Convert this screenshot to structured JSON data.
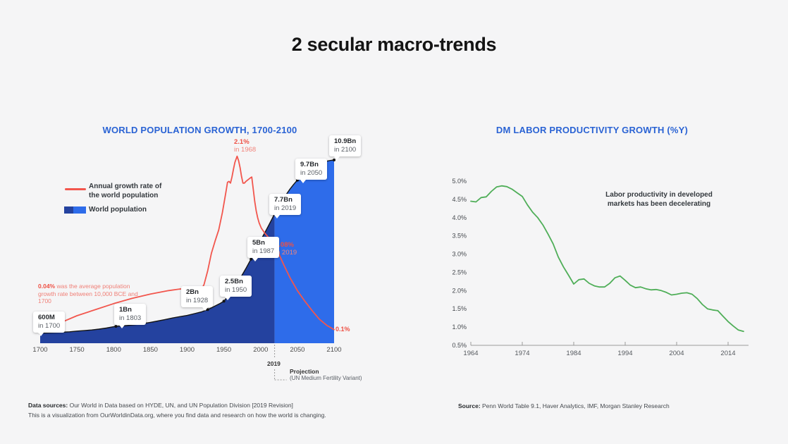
{
  "page": {
    "title": "2 secular macro-trends",
    "background": "#f5f5f6"
  },
  "left_chart": {
    "title": "WORLD POPULATION GROWTH, 1700-2100",
    "title_color": "#2a63d4",
    "legend": {
      "growth": {
        "line1": "Annual growth rate of",
        "line2": "the world population"
      },
      "population": {
        "label": "World population"
      }
    },
    "avg_note": {
      "bold": "0.04%",
      "rest": " was the average population growth rate between 10,000 BCE and 1700"
    },
    "rate_labels": {
      "peak": {
        "value": "2.1%",
        "year": "in 1968"
      },
      "y2019": {
        "value": "1.08%",
        "year": "in 2019"
      },
      "end_value": "0.1%"
    },
    "projection": {
      "year": "2019",
      "title": "Projection",
      "subtitle": "(UN Medium Fertility Variant)"
    },
    "footer": {
      "line1_bold": "Data sources:",
      "line1_rest": " Our World in Data based on HYDE, UN, and UN Population Division [2019 Revision]",
      "line2": "This is a visualization from OurWorldinData.org, where you find data and research on how the world is changing."
    }
  },
  "right_chart": {
    "title": "DM LABOR PRODUCTIVITY GROWTH (%Y)",
    "annotation": {
      "line1": "Labor productivity in developed",
      "line2": "markets has been decelerating"
    },
    "source": {
      "bold": "Source:",
      "rest": " Penn World Table 9.1, Haver Analytics, IMF, Morgan Stanley Research"
    }
  },
  "chart_data": [
    {
      "id": "world-population-growth",
      "type": "area+line",
      "title": "WORLD POPULATION GROWTH, 1700-2100",
      "x_range": [
        1700,
        2100
      ],
      "x_ticks": [
        1700,
        1750,
        1800,
        1850,
        1900,
        1950,
        2000,
        2050,
        2100
      ],
      "split_year": 2019,
      "colors": {
        "historical_area": "#24429f",
        "projection_area": "#2e6cea",
        "outline": "#141414",
        "growth_line": "#f2564d"
      },
      "population_series": {
        "name": "World population",
        "unit": "billions",
        "axis_max": 10.9,
        "x": [
          1700,
          1710,
          1720,
          1730,
          1740,
          1750,
          1760,
          1770,
          1780,
          1790,
          1800,
          1803,
          1810,
          1820,
          1830,
          1840,
          1850,
          1860,
          1870,
          1880,
          1890,
          1900,
          1910,
          1920,
          1928,
          1935,
          1940,
          1945,
          1950,
          1955,
          1960,
          1965,
          1970,
          1975,
          1980,
          1985,
          1987,
          1990,
          1995,
          2000,
          2005,
          2010,
          2015,
          2019,
          2025,
          2030,
          2035,
          2040,
          2045,
          2050,
          2055,
          2060,
          2065,
          2070,
          2075,
          2080,
          2085,
          2090,
          2095,
          2100
        ],
        "y": [
          0.6,
          0.62,
          0.64,
          0.66,
          0.68,
          0.72,
          0.75,
          0.79,
          0.84,
          0.9,
          0.98,
          1.0,
          1.02,
          1.06,
          1.11,
          1.17,
          1.24,
          1.32,
          1.41,
          1.5,
          1.58,
          1.65,
          1.76,
          1.87,
          2.0,
          2.15,
          2.26,
          2.37,
          2.5,
          2.77,
          3.02,
          3.33,
          3.69,
          4.07,
          4.45,
          4.85,
          5.0,
          5.31,
          5.72,
          6.12,
          6.52,
          6.93,
          7.35,
          7.7,
          8.1,
          8.5,
          8.85,
          9.17,
          9.45,
          9.7,
          9.9,
          10.1,
          10.28,
          10.43,
          10.56,
          10.67,
          10.76,
          10.83,
          10.87,
          10.9
        ]
      },
      "growth_series": {
        "name": "Annual growth rate of the world population",
        "unit": "percent",
        "x": [
          1700,
          1725,
          1750,
          1775,
          1800,
          1825,
          1850,
          1875,
          1900,
          1910,
          1918,
          1923,
          1928,
          1933,
          1938,
          1943,
          1948,
          1951,
          1953,
          1955,
          1957,
          1959,
          1961,
          1963,
          1965,
          1968,
          1970,
          1972,
          1974,
          1976,
          1978,
          1980,
          1983,
          1986,
          1988,
          1990,
          1992,
          1994,
          1996,
          1998,
          2001,
          2005,
          2010,
          2015,
          2019,
          2025,
          2032,
          2040,
          2050,
          2060,
          2070,
          2080,
          2090,
          2100
        ],
        "y": [
          0.1,
          0.17,
          0.26,
          0.33,
          0.4,
          0.46,
          0.51,
          0.55,
          0.58,
          0.57,
          0.54,
          0.62,
          0.78,
          0.98,
          1.12,
          1.25,
          1.45,
          1.6,
          1.7,
          1.8,
          1.81,
          1.79,
          1.86,
          1.95,
          2.03,
          2.1,
          2.05,
          1.97,
          1.87,
          1.79,
          1.79,
          1.81,
          1.83,
          1.85,
          1.86,
          1.72,
          1.58,
          1.47,
          1.39,
          1.33,
          1.27,
          1.22,
          1.17,
          1.12,
          1.08,
          0.97,
          0.84,
          0.7,
          0.55,
          0.43,
          0.32,
          0.22,
          0.15,
          0.1
        ]
      },
      "labeled_points": [
        {
          "year": 1700,
          "value": 0.6,
          "label": "600M",
          "sub": "in 1700"
        },
        {
          "year": 1803,
          "value": 1.0,
          "label": "1Bn",
          "sub": "in 1803"
        },
        {
          "year": 1928,
          "value": 2.0,
          "label": "2Bn",
          "sub": "in 1928"
        },
        {
          "year": 1950,
          "value": 2.5,
          "label": "2.5Bn",
          "sub": "in 1950"
        },
        {
          "year": 1987,
          "value": 5.0,
          "label": "5Bn",
          "sub": "in 1987"
        },
        {
          "year": 2019,
          "value": 7.7,
          "label": "7.7Bn",
          "sub": "in 2019"
        },
        {
          "year": 2050,
          "value": 9.7,
          "label": "9.7Bn",
          "sub": "in 2050"
        },
        {
          "year": 2100,
          "value": 10.9,
          "label": "10.9Bn",
          "sub": "in 2100"
        }
      ]
    },
    {
      "id": "dm-labor-productivity",
      "type": "line",
      "title": "DM LABOR PRODUCTIVITY GROWTH (%Y)",
      "line_color": "#4fae58",
      "ylim": [
        0.5,
        5.0
      ],
      "y_tick_labels": [
        "5.0%",
        "4.5%",
        "4.0%",
        "3.5%",
        "3.0%",
        "2.5%",
        "2.0%",
        "1.5%",
        "1.0%",
        "0.5%"
      ],
      "x_ticks": [
        1964,
        1974,
        1984,
        1994,
        2004,
        2014
      ],
      "x": [
        1964,
        1965,
        1966,
        1967,
        1968,
        1969,
        1970,
        1971,
        1972,
        1973,
        1974,
        1975,
        1976,
        1977,
        1978,
        1979,
        1980,
        1981,
        1982,
        1983,
        1984,
        1985,
        1986,
        1987,
        1988,
        1989,
        1990,
        1991,
        1992,
        1993,
        1994,
        1995,
        1996,
        1997,
        1998,
        1999,
        2000,
        2001,
        2002,
        2003,
        2004,
        2005,
        2006,
        2007,
        2008,
        2009,
        2010,
        2011,
        2012,
        2013,
        2014,
        2015,
        2016,
        2017
      ],
      "y": [
        4.45,
        4.43,
        4.55,
        4.57,
        4.72,
        4.84,
        4.87,
        4.85,
        4.78,
        4.68,
        4.58,
        4.35,
        4.15,
        4.0,
        3.8,
        3.55,
        3.28,
        2.92,
        2.65,
        2.42,
        2.18,
        2.3,
        2.32,
        2.2,
        2.13,
        2.1,
        2.1,
        2.2,
        2.35,
        2.4,
        2.28,
        2.15,
        2.08,
        2.1,
        2.05,
        2.02,
        2.03,
        2.0,
        1.95,
        1.88,
        1.9,
        1.93,
        1.94,
        1.9,
        1.78,
        1.62,
        1.5,
        1.47,
        1.45,
        1.3,
        1.15,
        1.03,
        0.92,
        0.88
      ]
    }
  ]
}
